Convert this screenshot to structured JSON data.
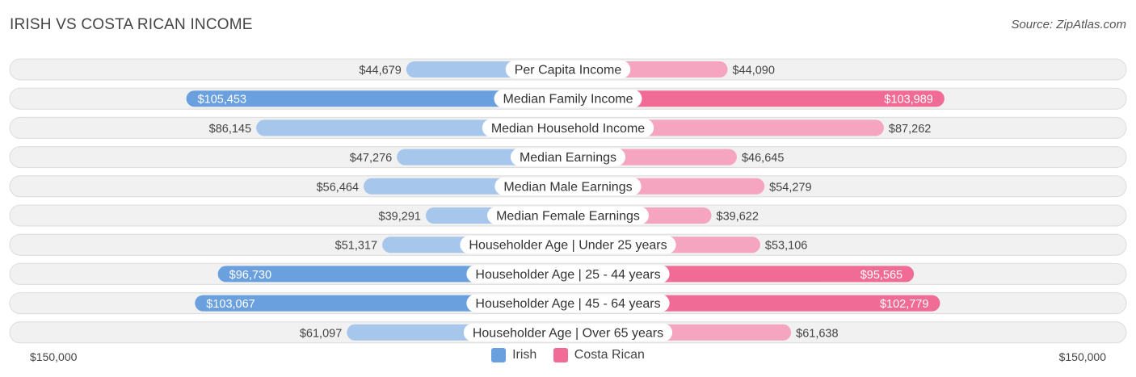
{
  "header": {
    "title": "IRISH VS COSTA RICAN INCOME",
    "source": "Source: ZipAtlas.com"
  },
  "colors": {
    "irish_strong": "#6aa0de",
    "irish_light": "#a7c6ec",
    "costa_strong": "#f06b96",
    "costa_light": "#f6a5c0",
    "row_bg": "#f1f1f1",
    "row_border": "#dcdcdc"
  },
  "chart_data": {
    "type": "bar",
    "orientation": "horizontal-diverging",
    "title": "IRISH VS COSTA RICAN INCOME",
    "axis_max": 150000,
    "axis_labels": {
      "left": "$150,000",
      "right": "$150,000"
    },
    "categories": [
      "Per Capita Income",
      "Median Family Income",
      "Median Household Income",
      "Median Earnings",
      "Median Male Earnings",
      "Median Female Earnings",
      "Householder Age | Under 25 years",
      "Householder Age | 25 - 44 years",
      "Householder Age | 45 - 64 years",
      "Householder Age | Over 65 years"
    ],
    "series": [
      {
        "name": "Irish",
        "values": [
          44679,
          105453,
          86145,
          47276,
          56464,
          39291,
          51317,
          96730,
          103067,
          61097
        ],
        "labels": [
          "$44,679",
          "$105,453",
          "$86,145",
          "$47,276",
          "$56,464",
          "$39,291",
          "$51,317",
          "$96,730",
          "$103,067",
          "$61,097"
        ]
      },
      {
        "name": "Costa Rican",
        "values": [
          44090,
          103989,
          87262,
          46645,
          54279,
          39622,
          53106,
          95565,
          102779,
          61638
        ],
        "labels": [
          "$44,090",
          "$103,989",
          "$87,262",
          "$46,645",
          "$54,279",
          "$39,622",
          "$53,106",
          "$95,565",
          "$102,779",
          "$61,638"
        ]
      }
    ],
    "legend": [
      "Irish",
      "Costa Rican"
    ]
  }
}
